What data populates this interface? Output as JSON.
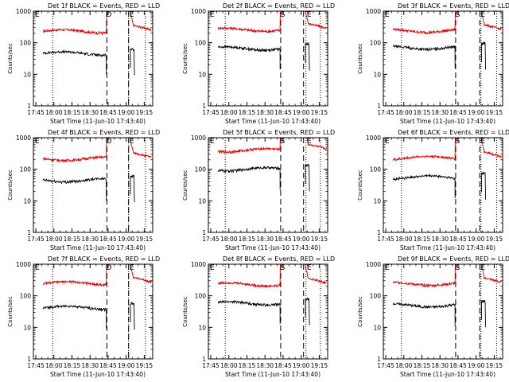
{
  "chart_data": [
    {
      "type": "line",
      "title": "Det 1f BLACK = Events, RED = LLD",
      "xlabel": "Start Time (11-Jun-10 17:43:40)",
      "ylabel": "Counts/sec",
      "x_ticks": [
        "17:45",
        "18:00",
        "18:15",
        "18:30",
        "18:45",
        "19:00",
        "19:15"
      ],
      "y_scale": "log",
      "ylim": [
        1,
        1000
      ],
      "y_ticks": [
        "1",
        "10",
        "100",
        "1000"
      ],
      "markers": {
        "D": "18:45",
        "E": "19:04"
      },
      "dotted_times": [
        "17:59",
        "19:02",
        "19:16"
      ],
      "dashed_times": [
        "18:44",
        "19:02"
      ],
      "series": [
        {
          "name": "RED = LLD",
          "color": "#e00000",
          "level": 230
        },
        {
          "name": "BLACK = Events",
          "color": "#000000",
          "level": 46
        }
      ]
    },
    {
      "type": "line",
      "title": "Det 2f BLACK = Events, RED = LLD",
      "xlabel": "Start Time (11-Jun-10 17:43:40)",
      "ylabel": "Counts/sec",
      "x_ticks": [
        "17:45",
        "18:00",
        "18:15",
        "18:30",
        "18:45",
        "19:00",
        "19:15"
      ],
      "y_scale": "log",
      "ylim": [
        1,
        1000
      ],
      "y_ticks": [
        "1",
        "10",
        "100",
        "1000"
      ],
      "markers": {
        "S": "18:44",
        "E": "19:06"
      },
      "dotted_times": [
        "17:57",
        "19:04",
        "19:16"
      ],
      "dashed_times": [
        "18:43",
        "19:02"
      ],
      "series": [
        {
          "name": "RED = LLD",
          "color": "#e00000",
          "level": 260
        },
        {
          "name": "BLACK = Events",
          "color": "#000000",
          "level": 66
        }
      ]
    },
    {
      "type": "line",
      "title": "Det 3f BLACK = Events, RED = LLD",
      "xlabel": "Start Time (11-Jun-10 17:43:40)",
      "ylabel": "Counts/sec",
      "x_ticks": [
        "17:45",
        "18:00",
        "18:15",
        "18:30",
        "18:45",
        "19:00",
        "19:15"
      ],
      "y_scale": "log",
      "ylim": [
        1,
        1000
      ],
      "y_ticks": [
        "1",
        "10",
        "100",
        "1000"
      ],
      "markers": {
        "S": "18:44",
        "E": "19:05"
      },
      "dotted_times": [
        "17:58",
        "19:04",
        "19:17"
      ],
      "dashed_times": [
        "18:43",
        "19:03"
      ],
      "series": [
        {
          "name": "RED = LLD",
          "color": "#e00000",
          "level": 240
        },
        {
          "name": "BLACK = Events",
          "color": "#000000",
          "level": 70
        }
      ]
    },
    {
      "type": "line",
      "title": "Det 4f BLACK = Events, RED = LLD",
      "xlabel": "Start Time (11-Jun-10 17:43:40)",
      "ylabel": "Counts/sec",
      "x_ticks": [
        "17:45",
        "18:00",
        "18:15",
        "18:30",
        "18:45",
        "19:00",
        "19:15"
      ],
      "y_scale": "log",
      "ylim": [
        1,
        1000
      ],
      "y_ticks": [
        "1",
        "10",
        "100",
        "1000"
      ],
      "markers": {
        "D": "18:45",
        "E": "19:04"
      },
      "dotted_times": [
        "17:59",
        "19:02",
        "19:16"
      ],
      "dashed_times": [
        "18:44",
        "19:02"
      ],
      "series": [
        {
          "name": "RED = LLD",
          "color": "#e00000",
          "level": 215
        },
        {
          "name": "BLACK = Events",
          "color": "#000000",
          "level": 45
        }
      ]
    },
    {
      "type": "line",
      "title": "Det 5f BLACK = Events, RED = LLD",
      "xlabel": "Start Time (11-Jun-10 17:43:40)",
      "ylabel": "Counts/sec",
      "x_ticks": [
        "17:45",
        "18:00",
        "18:15",
        "18:30",
        "18:45",
        "19:00",
        "19:15"
      ],
      "y_scale": "log",
      "ylim": [
        1,
        1000
      ],
      "y_ticks": [
        "1",
        "10",
        "100",
        "1000"
      ],
      "markers": {
        "S": "18:44",
        "E": "19:06"
      },
      "dotted_times": [
        "17:57",
        "19:04",
        "19:16"
      ],
      "dashed_times": [
        "18:43",
        "19:02"
      ],
      "series": [
        {
          "name": "RED = LLD",
          "color": "#e00000",
          "level": 400
        },
        {
          "name": "BLACK = Events",
          "color": "#000000",
          "level": 100
        }
      ]
    },
    {
      "type": "line",
      "title": "Det 6f BLACK = Events, RED = LLD",
      "xlabel": "Start Time (11-Jun-10 17:43:40)",
      "ylabel": "Counts/sec",
      "x_ticks": [
        "17:45",
        "18:00",
        "18:15",
        "18:30",
        "18:45",
        "19:00",
        "19:15"
      ],
      "y_scale": "log",
      "ylim": [
        1,
        1000
      ],
      "y_ticks": [
        "1",
        "10",
        "100",
        "1000"
      ],
      "markers": {
        "S": "18:44",
        "E": "19:05"
      },
      "dotted_times": [
        "17:58",
        "19:04",
        "19:17"
      ],
      "dashed_times": [
        "18:43",
        "19:03"
      ],
      "series": [
        {
          "name": "RED = LLD",
          "color": "#e00000",
          "level": 230
        },
        {
          "name": "BLACK = Events",
          "color": "#000000",
          "level": 55
        }
      ]
    },
    {
      "type": "line",
      "title": "Det 7f BLACK = Events, RED = LLD",
      "xlabel": "Start Time (11-Jun-10 17:43:40)",
      "ylabel": "Counts/sec",
      "x_ticks": [
        "17:45",
        "18:00",
        "18:15",
        "18:30",
        "18:45",
        "19:00",
        "19:15"
      ],
      "y_scale": "log",
      "ylim": [
        1,
        1000
      ],
      "y_ticks": [
        "1",
        "10",
        "100",
        "1000"
      ],
      "markers": {
        "D": "18:45",
        "E": "19:04"
      },
      "dotted_times": [
        "17:59",
        "19:02",
        "19:16"
      ],
      "dashed_times": [
        "18:44",
        "19:02"
      ],
      "series": [
        {
          "name": "RED = LLD",
          "color": "#e00000",
          "level": 250
        },
        {
          "name": "BLACK = Events",
          "color": "#000000",
          "level": 42
        }
      ]
    },
    {
      "type": "line",
      "title": "Det 8f BLACK = Events, RED = LLD",
      "xlabel": "Start Time (11-Jun-10 17:43:40)",
      "ylabel": "Counts/sec",
      "x_ticks": [
        "17:45",
        "18:00",
        "18:15",
        "18:30",
        "18:45",
        "19:00",
        "19:15"
      ],
      "y_scale": "log",
      "ylim": [
        1,
        1000
      ],
      "y_ticks": [
        "1",
        "10",
        "100",
        "1000"
      ],
      "markers": {
        "S": "18:44",
        "E": "19:06"
      },
      "dotted_times": [
        "17:57",
        "19:04",
        "19:16"
      ],
      "dashed_times": [
        "18:43",
        "19:02"
      ],
      "series": [
        {
          "name": "RED = LLD",
          "color": "#e00000",
          "level": 230
        },
        {
          "name": "BLACK = Events",
          "color": "#000000",
          "level": 58
        }
      ]
    },
    {
      "type": "line",
      "title": "Det 9f BLACK = Events, RED = LLD",
      "xlabel": "Start Time (11-Jun-10 17:43:40)",
      "ylabel": "Counts/sec",
      "x_ticks": [
        "17:45",
        "18:00",
        "18:15",
        "18:30",
        "18:45",
        "19:00",
        "19:15"
      ],
      "y_scale": "log",
      "ylim": [
        1,
        1000
      ],
      "y_ticks": [
        "1",
        "10",
        "100",
        "1000"
      ],
      "markers": {
        "S": "18:44",
        "E": "19:05"
      },
      "dotted_times": [
        "17:58",
        "19:04",
        "19:17"
      ],
      "dashed_times": [
        "18:43",
        "19:03"
      ],
      "series": [
        {
          "name": "RED = LLD",
          "color": "#e00000",
          "level": 240
        },
        {
          "name": "BLACK = Events",
          "color": "#000000",
          "level": 50
        }
      ]
    }
  ]
}
